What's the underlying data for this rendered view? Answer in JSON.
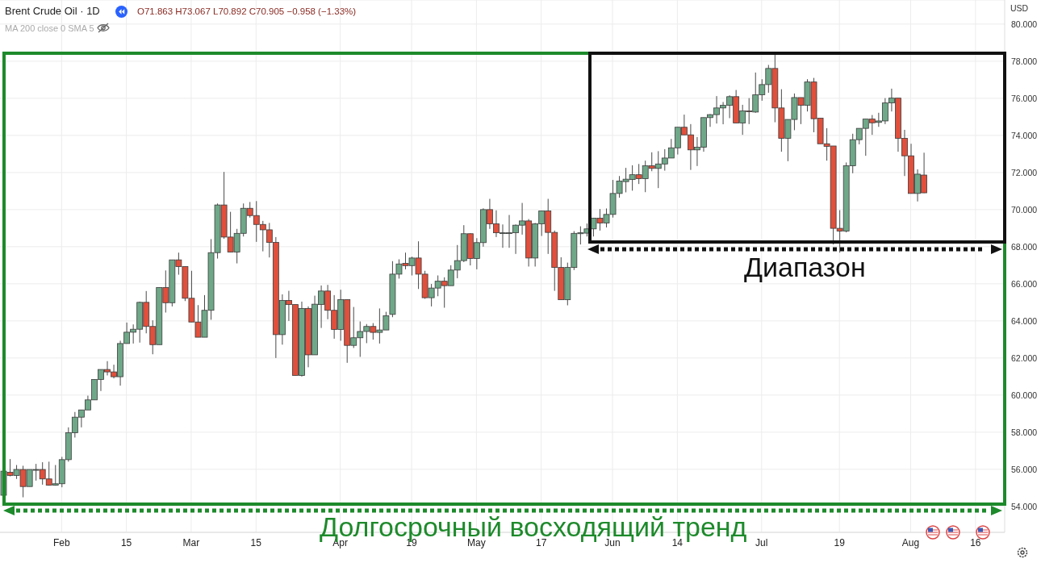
{
  "chart_data": {
    "type": "candlestick",
    "title": "Brent Crude Oil · 1D",
    "ylabel": "USD",
    "annotations": [
      "O71.863 H73.067 L70.892 C70.905 −0.958 (−1.33%)",
      "MA 200 close 0 SMA 5",
      "Диапазон",
      "Долгосрочный восходящий тренд"
    ],
    "colors": [
      "#6fa889",
      "#e0503c",
      "#6fa889",
      "#e0503c",
      "#6fa889",
      "#6fa889",
      "#e0503c",
      "#e0503c",
      "#6fa889",
      "#6fa889",
      "#6fa889",
      "#6fa889",
      "#6fa889",
      "#6fa889",
      "#6fa889",
      "#6fa889",
      "#e0503c",
      "#e0503c",
      "#6fa889",
      "#6fa889",
      "#6fa889",
      "#6fa889",
      "#e0503c",
      "#e0503c",
      "#6fa889",
      "#e0503c",
      "#6fa889",
      "#e0503c",
      "#e0503c",
      "#e0503c",
      "#e0503c",
      "#6fa889",
      "#6fa889",
      "#6fa889",
      "#e0503c",
      "#e0503c",
      "#6fa889",
      "#6fa889",
      "#e0503c",
      "#e0503c",
      "#e0503c",
      "#e0503c",
      "#e0503c",
      "#6fa889",
      "#e0503c",
      "#e0503c",
      "#6fa889",
      "#e0503c",
      "#6fa889",
      "#6fa889",
      "#e0503c",
      "#e0503c",
      "#6fa889",
      "#e0503c",
      "#6fa889",
      "#6fa889",
      "#6fa889",
      "#e0503c",
      "#6fa889",
      "#6fa889",
      "#6fa889",
      "#6fa889",
      "#e0503c",
      "#6fa889",
      "#e0503c",
      "#e0503c",
      "#6fa889",
      "#6fa889",
      "#e0503c",
      "#6fa889",
      "#6fa889",
      "#6fa889",
      "#e0503c",
      "#6fa889",
      "#6fa889",
      "#e0503c",
      "#e0503c",
      "#6fa889",
      "#6fa889",
      "#6fa889",
      "#6fa889",
      "#e0503c",
      "#6fa889",
      "#6fa889",
      "#e0503c",
      "#e0503c",
      "#e0503c",
      "#6fa889",
      "#6fa889",
      "#6fa889",
      "#6fa889",
      "#6fa889",
      "#e0503c",
      "#6fa889",
      "#6fa889",
      "#6fa889",
      "#6fa889",
      "#6fa889",
      "#e0503c",
      "#6fa889",
      "#e0503c",
      "#6fa889",
      "#6fa889",
      "#6fa889",
      "#6fa889",
      "#e0503c",
      "#e0503c",
      "#6fa889",
      "#6fa889",
      "#6fa889",
      "#6fa889",
      "#6fa889",
      "#6fa889",
      "#e0503c",
      "#6fa889",
      "#e0503c",
      "#6fa889",
      "#6fa889",
      "#6fa889",
      "#e0503c",
      "#e0503c",
      "#6fa889",
      "#6fa889",
      "#e0503c",
      "#6fa889",
      "#e0503c",
      "#e0503c",
      "#e0503c",
      "#e0503c",
      "#e0503c",
      "#6fa889",
      "#6fa889",
      "#6fa889",
      "#6fa889",
      "#e0503c",
      "#6fa889",
      "#6fa889",
      "#6fa889",
      "#e0503c",
      "#e0503c",
      "#e0503c",
      "#6fa889",
      "#e0503c",
      null,
      null,
      null,
      null,
      null,
      null,
      null,
      null,
      null,
      null,
      null,
      null
    ],
    "grid": true,
    "ylim": [
      52.6,
      81.3
    ],
    "yticks": [
      {
        "value": 54,
        "label": "54.000"
      },
      {
        "value": 56,
        "label": "56.000"
      },
      {
        "value": 58,
        "label": "58.000"
      },
      {
        "value": 60,
        "label": "60.000"
      },
      {
        "value": 62,
        "label": "62.000"
      },
      {
        "value": 64,
        "label": "64.000"
      },
      {
        "value": 66,
        "label": "66.000"
      },
      {
        "value": 68,
        "label": "68.000"
      },
      {
        "value": 70,
        "label": "70.000"
      },
      {
        "value": 72,
        "label": "72.000"
      },
      {
        "value": 74,
        "label": "74.000"
      },
      {
        "value": 76,
        "label": "76.000"
      },
      {
        "value": 78,
        "label": "78.000"
      },
      {
        "value": 80,
        "label": "80.000"
      }
    ],
    "categories": [
      null,
      null,
      null,
      null,
      null,
      null,
      null,
      null,
      null,
      "Feb",
      null,
      null,
      null,
      null,
      null,
      null,
      null,
      null,
      null,
      "15",
      null,
      null,
      null,
      null,
      null,
      null,
      null,
      null,
      null,
      "Mar",
      null,
      null,
      null,
      null,
      null,
      null,
      null,
      null,
      null,
      "15",
      null,
      null,
      null,
      null,
      null,
      null,
      null,
      null,
      null,
      null,
      null,
      null,
      "Apr",
      null,
      null,
      null,
      null,
      null,
      null,
      null,
      null,
      null,
      null,
      "19",
      null,
      null,
      null,
      null,
      null,
      null,
      null,
      null,
      null,
      "May",
      null,
      null,
      null,
      null,
      null,
      null,
      null,
      null,
      null,
      "17",
      null,
      null,
      null,
      null,
      null,
      null,
      null,
      null,
      null,
      null,
      "Jun",
      null,
      null,
      null,
      null,
      null,
      null,
      null,
      null,
      null,
      "14",
      null,
      null,
      null,
      null,
      null,
      null,
      null,
      null,
      null,
      null,
      null,
      null,
      "Jul",
      null,
      null,
      null,
      null,
      null,
      null,
      null,
      null,
      null,
      null,
      null,
      "19",
      null,
      null,
      null,
      null,
      null,
      null,
      null,
      null,
      null,
      null,
      "Aug",
      null,
      null,
      null,
      null,
      null,
      null,
      null,
      null,
      null,
      "16",
      null,
      null,
      null,
      null
    ],
    "ohlc": [
      [
        54.6,
        55.9,
        54.6,
        55.9
      ],
      [
        55.84,
        56.55,
        55.62,
        55.67
      ],
      [
        55.67,
        56.23,
        55.48,
        55.99
      ],
      [
        55.99,
        56.19,
        54.49,
        55.07
      ],
      [
        55.07,
        55.99,
        55.07,
        55.99
      ],
      [
        55.98,
        56.29,
        55.39,
        55.99
      ],
      [
        55.99,
        56.38,
        55.17,
        55.48
      ],
      [
        55.48,
        56.41,
        55.12,
        55.14
      ],
      [
        55.14,
        56.23,
        55.12,
        55.22
      ],
      [
        55.22,
        56.67,
        55.03,
        56.52
      ],
      [
        56.52,
        58.26,
        56.41,
        57.97
      ],
      [
        57.97,
        59.09,
        57.71,
        58.81
      ],
      [
        58.81,
        59.2,
        58.26,
        59.2
      ],
      [
        59.2,
        59.97,
        59.2,
        59.74
      ],
      [
        59.74,
        60.84,
        59.74,
        60.84
      ],
      [
        60.84,
        61.38,
        60.22,
        61.38
      ],
      [
        61.38,
        61.83,
        61.06,
        61.25
      ],
      [
        61.25,
        61.64,
        60.9,
        60.99
      ],
      [
        60.99,
        62.93,
        60.51,
        62.78
      ],
      [
        62.78,
        63.91,
        62.78,
        63.39
      ],
      [
        63.39,
        63.81,
        62.78,
        63.55
      ],
      [
        63.55,
        65.04,
        62.83,
        65.0
      ],
      [
        65.0,
        65.61,
        63.33,
        63.7
      ],
      [
        63.7,
        64.03,
        62.2,
        62.72
      ],
      [
        62.72,
        65.8,
        62.72,
        65.8
      ],
      [
        65.8,
        66.72,
        64.45,
        64.98
      ],
      [
        64.98,
        67.29,
        64.78,
        67.29
      ],
      [
        67.29,
        67.68,
        66.49,
        66.93
      ],
      [
        66.93,
        66.93,
        65.07,
        65.22
      ],
      [
        65.22,
        66.7,
        63.94,
        63.94
      ],
      [
        63.94,
        64.85,
        63.12,
        63.12
      ],
      [
        63.12,
        65.39,
        63.12,
        64.57
      ],
      [
        64.57,
        68.41,
        64.06,
        67.68
      ],
      [
        67.68,
        70.33,
        67.36,
        70.25
      ],
      [
        70.25,
        72.03,
        68.43,
        68.52
      ],
      [
        68.52,
        69.88,
        67.71,
        67.71
      ],
      [
        67.71,
        68.96,
        67.1,
        68.72
      ],
      [
        68.72,
        70.33,
        68.55,
        70.07
      ],
      [
        70.07,
        70.41,
        69.57,
        69.68
      ],
      [
        69.68,
        70.46,
        68.26,
        69.2
      ],
      [
        69.2,
        69.39,
        67.75,
        68.91
      ],
      [
        68.91,
        69.28,
        67.42,
        68.23
      ],
      [
        68.23,
        68.52,
        62.0,
        63.26
      ],
      [
        63.26,
        65.43,
        62.72,
        65.1
      ],
      [
        65.1,
        65.62,
        64.0,
        64.88
      ],
      [
        64.88,
        64.88,
        61.06,
        61.06
      ],
      [
        61.06,
        65.04,
        61.0,
        64.67
      ],
      [
        64.67,
        64.78,
        61.5,
        62.17
      ],
      [
        62.17,
        65.36,
        62.17,
        64.9
      ],
      [
        64.88,
        65.91,
        63.62,
        65.61
      ],
      [
        65.61,
        65.94,
        64.09,
        64.57
      ],
      [
        64.57,
        65.39,
        63.04,
        63.54
      ],
      [
        63.54,
        65.68,
        62.93,
        65.15
      ],
      [
        65.15,
        65.15,
        61.74,
        62.68
      ],
      [
        62.68,
        64.75,
        62.54,
        63.09
      ],
      [
        63.09,
        63.97,
        62.06,
        63.43
      ],
      [
        63.43,
        63.83,
        62.8,
        63.7
      ],
      [
        63.7,
        63.88,
        62.99,
        63.38
      ],
      [
        63.38,
        64.67,
        62.78,
        63.51
      ],
      [
        63.51,
        64.49,
        63.51,
        64.28
      ],
      [
        64.35,
        67.22,
        64.2,
        66.52
      ],
      [
        66.52,
        67.32,
        66.28,
        67.07
      ],
      [
        67.1,
        67.68,
        66.78,
        66.98
      ],
      [
        66.98,
        67.46,
        66.45,
        67.39
      ],
      [
        67.39,
        68.29,
        65.72,
        66.52
      ],
      [
        66.52,
        66.7,
        65.19,
        65.25
      ],
      [
        65.25,
        65.99,
        64.78,
        65.77
      ],
      [
        65.77,
        66.45,
        65.33,
        66.14
      ],
      [
        66.14,
        66.35,
        64.71,
        65.9
      ],
      [
        65.9,
        67.0,
        65.9,
        66.74
      ],
      [
        66.74,
        68.09,
        66.3,
        67.25
      ],
      [
        67.25,
        69.16,
        67.17,
        68.7
      ],
      [
        68.7,
        68.72,
        66.99,
        67.36
      ],
      [
        67.36,
        68.46,
        66.78,
        68.22
      ],
      [
        68.22,
        70.07,
        68.0,
        70.0
      ],
      [
        70.0,
        70.58,
        68.96,
        69.23
      ],
      [
        69.23,
        69.96,
        68.52,
        68.75
      ],
      [
        68.74,
        69.2,
        67.94,
        68.75
      ],
      [
        68.74,
        69.71,
        67.94,
        68.75
      ],
      [
        68.75,
        69.2,
        67.61,
        69.16
      ],
      [
        69.16,
        70.36,
        68.65,
        69.39
      ],
      [
        69.39,
        69.49,
        66.93,
        67.39
      ],
      [
        67.39,
        69.28,
        66.93,
        69.23
      ],
      [
        69.23,
        69.93,
        68.58,
        69.93
      ],
      [
        69.93,
        70.58,
        67.61,
        68.77
      ],
      [
        68.77,
        68.87,
        65.62,
        66.88
      ],
      [
        66.88,
        67.43,
        65.14,
        65.14
      ],
      [
        65.14,
        67.14,
        64.84,
        66.88
      ],
      [
        66.88,
        68.84,
        66.74,
        68.72
      ],
      [
        68.7,
        69.1,
        68.12,
        68.75
      ],
      [
        68.73,
        69.25,
        68.55,
        68.96
      ],
      [
        68.96,
        69.54,
        68.55,
        69.54
      ],
      [
        69.54,
        70.03,
        68.87,
        69.28
      ],
      [
        69.28,
        70.06,
        69.04,
        69.74
      ],
      [
        69.74,
        71.6,
        69.57,
        70.87
      ],
      [
        70.87,
        71.81,
        70.64,
        71.54
      ],
      [
        71.51,
        72.25,
        70.93,
        71.64
      ],
      [
        71.62,
        72.39,
        71.02,
        71.88
      ],
      [
        71.88,
        72.46,
        71.38,
        71.67
      ],
      [
        71.67,
        72.64,
        70.94,
        72.36
      ],
      [
        72.36,
        73.09,
        72.07,
        72.22
      ],
      [
        72.22,
        73.15,
        71.16,
        72.46
      ],
      [
        72.46,
        73.26,
        72.1,
        72.78
      ],
      [
        72.78,
        73.81,
        72.78,
        73.33
      ],
      [
        73.33,
        74.44,
        72.97,
        74.44
      ],
      [
        74.44,
        75.12,
        74.03,
        74.03
      ],
      [
        74.03,
        74.61,
        72.14,
        73.22
      ],
      [
        73.22,
        73.91,
        72.35,
        73.36
      ],
      [
        73.36,
        74.96,
        73.12,
        74.96
      ],
      [
        74.96,
        75.15,
        74.46,
        75.12
      ],
      [
        75.12,
        76.12,
        74.64,
        75.48
      ],
      [
        75.48,
        75.8,
        74.6,
        75.62
      ],
      [
        75.62,
        76.16,
        74.93,
        76.09
      ],
      [
        76.09,
        76.45,
        74.67,
        74.67
      ],
      [
        74.67,
        75.65,
        74.03,
        75.32
      ],
      [
        75.32,
        76.01,
        74.61,
        75.28
      ],
      [
        75.26,
        77.39,
        75.22,
        76.19
      ],
      [
        76.19,
        77.03,
        75.87,
        76.74
      ],
      [
        76.74,
        77.8,
        76.3,
        77.61
      ],
      [
        77.61,
        78.41,
        74.71,
        75.48
      ],
      [
        75.48,
        76.49,
        73.12,
        73.84
      ],
      [
        73.84,
        74.86,
        72.61,
        74.86
      ],
      [
        74.86,
        76.26,
        74.28,
        76.04
      ],
      [
        76.04,
        76.04,
        74.61,
        75.62
      ],
      [
        75.62,
        77.03,
        75.29,
        76.88
      ],
      [
        76.88,
        77.1,
        74.17,
        74.9
      ],
      [
        74.93,
        74.93,
        73.55,
        73.55
      ],
      [
        73.55,
        74.39,
        72.64,
        73.41
      ],
      [
        73.43,
        73.43,
        68.12,
        68.99
      ],
      [
        68.99,
        69.97,
        67.68,
        68.84
      ],
      [
        68.84,
        72.54,
        68.77,
        72.36
      ],
      [
        72.36,
        74.09,
        71.96,
        73.77
      ],
      [
        73.77,
        74.38,
        73.52,
        74.38
      ],
      [
        74.38,
        74.88,
        72.9,
        74.88
      ],
      [
        74.88,
        75.1,
        74.03,
        74.68
      ],
      [
        74.7,
        75.22,
        74.46,
        74.78
      ],
      [
        74.78,
        76.01,
        74.61,
        75.75
      ],
      [
        75.75,
        76.52,
        75.29,
        76.01
      ],
      [
        76.01,
        76.01,
        73.12,
        73.84
      ],
      [
        73.84,
        74.3,
        71.81,
        72.9
      ],
      [
        72.9,
        73.55,
        70.87,
        70.87
      ],
      [
        70.87,
        72.17,
        70.44,
        71.91
      ],
      [
        71.863,
        73.067,
        70.892,
        70.905
      ],
      null,
      null,
      null,
      null,
      null,
      null,
      null,
      null,
      null,
      null,
      null,
      null
    ]
  }
}
